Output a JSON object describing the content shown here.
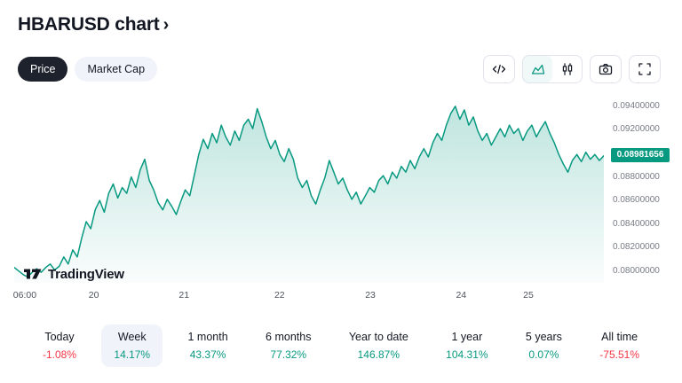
{
  "header": {
    "title": "HBARUSD chart",
    "chevron": "›"
  },
  "toggle": {
    "options": [
      {
        "label": "Price",
        "active": true
      },
      {
        "label": "Market Cap",
        "active": false
      }
    ]
  },
  "toolbar": {
    "buttons": [
      {
        "name": "code-embed",
        "active": false
      },
      {
        "name": "area-chart",
        "active": true
      },
      {
        "name": "candlestick-chart",
        "active": false
      },
      {
        "name": "camera-snapshot",
        "active": false
      },
      {
        "name": "fullscreen",
        "active": false
      }
    ]
  },
  "attribution": {
    "label": "TradingView"
  },
  "chart_data": {
    "type": "area",
    "title": "HBARUSD week price chart",
    "line_color": "#089981",
    "fill_top": "rgba(8,153,129,0.26)",
    "fill_bottom": "rgba(8,153,129,0.02)",
    "ylim": [
      0.079,
      0.0952
    ],
    "last_price": {
      "value": 0.08981656,
      "label": "0.08981656",
      "color": "#089981"
    },
    "y_ticks": [
      {
        "value": 0.094,
        "label": "0.09400000"
      },
      {
        "value": 0.092,
        "label": "0.09200000"
      },
      {
        "value": 0.088,
        "label": "0.08800000"
      },
      {
        "value": 0.086,
        "label": "0.08600000"
      },
      {
        "value": 0.084,
        "label": "0.08400000"
      },
      {
        "value": 0.082,
        "label": "0.08200000"
      },
      {
        "value": 0.08,
        "label": "0.08000000"
      }
    ],
    "x_ticks": [
      {
        "label": "06:00",
        "pos": 0.018
      },
      {
        "label": "20",
        "pos": 0.135
      },
      {
        "label": "21",
        "pos": 0.288
      },
      {
        "label": "22",
        "pos": 0.45
      },
      {
        "label": "23",
        "pos": 0.604
      },
      {
        "label": "24",
        "pos": 0.758
      },
      {
        "label": "25",
        "pos": 0.872
      }
    ],
    "values": [
      0.0803,
      0.08,
      0.0797,
      0.0795,
      0.0799,
      0.0802,
      0.0799,
      0.0803,
      0.0806,
      0.0801,
      0.0804,
      0.0812,
      0.0806,
      0.0818,
      0.0812,
      0.0828,
      0.0842,
      0.0836,
      0.0852,
      0.086,
      0.085,
      0.0866,
      0.0874,
      0.0862,
      0.0871,
      0.0866,
      0.088,
      0.0871,
      0.0886,
      0.0895,
      0.0877,
      0.0869,
      0.0858,
      0.0852,
      0.0861,
      0.0855,
      0.0848,
      0.0859,
      0.0869,
      0.0864,
      0.0881,
      0.0899,
      0.0912,
      0.0904,
      0.0917,
      0.0909,
      0.0924,
      0.0914,
      0.0907,
      0.0919,
      0.0911,
      0.0924,
      0.0929,
      0.0921,
      0.0938,
      0.0927,
      0.0914,
      0.0904,
      0.0911,
      0.0899,
      0.0893,
      0.0904,
      0.0895,
      0.0879,
      0.0871,
      0.0877,
      0.0864,
      0.0857,
      0.0869,
      0.0879,
      0.0894,
      0.0884,
      0.0874,
      0.0879,
      0.0869,
      0.0861,
      0.0867,
      0.0857,
      0.0864,
      0.0871,
      0.0867,
      0.0877,
      0.0881,
      0.0874,
      0.0884,
      0.0879,
      0.0889,
      0.0884,
      0.0894,
      0.0887,
      0.0897,
      0.0904,
      0.0897,
      0.0909,
      0.0917,
      0.0911,
      0.0924,
      0.0934,
      0.094,
      0.0929,
      0.0937,
      0.0924,
      0.0931,
      0.0919,
      0.0911,
      0.0917,
      0.0907,
      0.0914,
      0.0921,
      0.0914,
      0.0924,
      0.0917,
      0.0921,
      0.0911,
      0.0919,
      0.0924,
      0.0914,
      0.0921,
      0.0927,
      0.0917,
      0.0909,
      0.0899,
      0.0891,
      0.0884,
      0.0894,
      0.0899,
      0.0893,
      0.0901,
      0.0895,
      0.0899,
      0.0894,
      0.0898
    ]
  },
  "periods": [
    {
      "label": "Today",
      "change": "-1.08%",
      "direction": "down",
      "active": false
    },
    {
      "label": "Week",
      "change": "14.17%",
      "direction": "up",
      "active": true
    },
    {
      "label": "1 month",
      "change": "43.37%",
      "direction": "up",
      "active": false
    },
    {
      "label": "6 months",
      "change": "77.32%",
      "direction": "up",
      "active": false
    },
    {
      "label": "Year to date",
      "change": "146.87%",
      "direction": "up",
      "active": false
    },
    {
      "label": "1 year",
      "change": "104.31%",
      "direction": "up",
      "active": false
    },
    {
      "label": "5 years",
      "change": "0.07%",
      "direction": "up",
      "active": false
    },
    {
      "label": "All time",
      "change": "-75.51%",
      "direction": "down",
      "active": false
    }
  ],
  "colors": {
    "up": "#089981",
    "down": "#f23645",
    "text": "#131722",
    "muted": "#787b86",
    "pill_active_bg": "#1e222d",
    "pill_bg": "#f0f3fa"
  }
}
